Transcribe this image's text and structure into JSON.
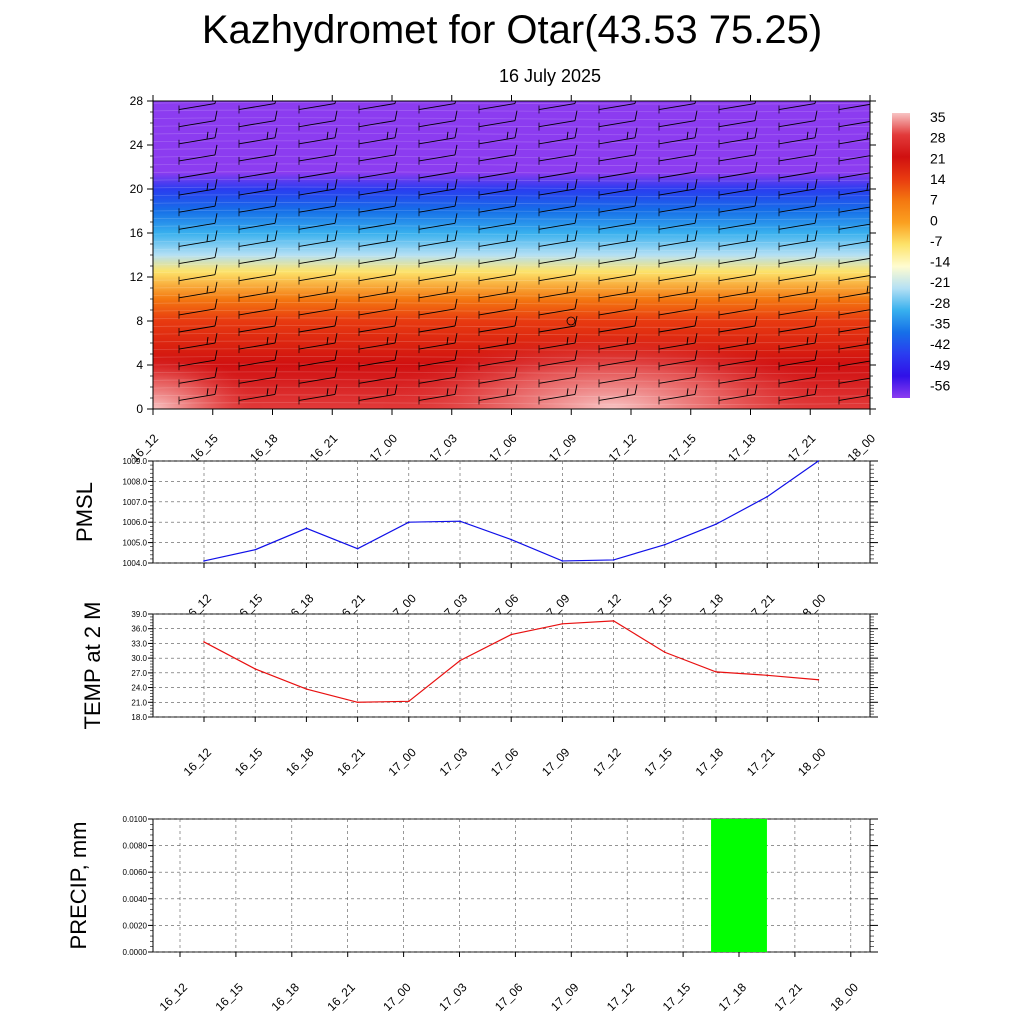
{
  "title": "Kazhydromet for Otar(43.53 75.25)",
  "subtitle": "16 July 2025",
  "time_labels": [
    "16_12",
    "16_15",
    "16_18",
    "16_21",
    "17_00",
    "17_03",
    "17_06",
    "17_09",
    "17_12",
    "17_15",
    "17_18",
    "17_21",
    "18_00"
  ],
  "colorbar": {
    "labels": [
      "35",
      "28",
      "21",
      "14",
      "7",
      "0",
      "-7",
      "-14",
      "-21",
      "-28",
      "-35",
      "-42",
      "-49",
      "-56"
    ],
    "colors": [
      "#f8c4c4",
      "#e23a3a",
      "#d01010",
      "#e83a10",
      "#f47810",
      "#fba020",
      "#fde36a",
      "#fffcd0",
      "#b4e0f4",
      "#38b0ee",
      "#1670e8",
      "#2a3cf0",
      "#3010e8",
      "#8c3cf0"
    ]
  },
  "chart_data": [
    {
      "type": "heatmap",
      "title": "",
      "xlabel": "",
      "ylabel": "",
      "x": [
        "16_12",
        "16_15",
        "16_18",
        "16_21",
        "17_00",
        "17_03",
        "17_06",
        "17_09",
        "17_12",
        "17_15",
        "17_18",
        "17_21",
        "18_00"
      ],
      "y_ticks": [
        0,
        4,
        8,
        12,
        16,
        20,
        24,
        28
      ],
      "ylim": [
        0,
        28
      ],
      "levels": [
        {
          "y": 0,
          "value": 28
        },
        {
          "y": 4,
          "value": 21
        },
        {
          "y": 8,
          "value": 14
        },
        {
          "y": 10,
          "value": 7
        },
        {
          "y": 12.5,
          "value": -7
        },
        {
          "y": 14,
          "value": -21
        },
        {
          "y": 16,
          "value": -28
        },
        {
          "y": 18,
          "value": -35
        },
        {
          "y": 20,
          "value": -42
        },
        {
          "y": 21.5,
          "value": -56
        },
        {
          "y": 24,
          "value": -56
        },
        {
          "y": 28,
          "value": -56
        }
      ],
      "surface_warm_peaks": [
        {
          "x": "16_12",
          "value": 35
        },
        {
          "x": "17_09",
          "value": 35
        }
      ],
      "wind_barbs": true,
      "grid": false
    },
    {
      "type": "line",
      "ylabel": "PMSL",
      "x": [
        "16_12",
        "16_15",
        "16_18",
        "16_21",
        "17_00",
        "17_03",
        "17_06",
        "17_09",
        "17_12",
        "17_15",
        "17_18",
        "17_21",
        "18_00"
      ],
      "series": [
        {
          "values": [
            1004.1,
            1004.65,
            1005.7,
            1004.7,
            1006.0,
            1006.05,
            1005.15,
            1004.1,
            1004.15,
            1004.9,
            1005.9,
            1007.25,
            1009.0
          ]
        }
      ],
      "y_ticks": [
        "1004.0",
        "1005.0",
        "1006.0",
        "1007.0",
        "1008.0",
        "1009.0"
      ],
      "ylim": [
        1004.0,
        1009.0
      ],
      "color": "#1010e8",
      "grid": true
    },
    {
      "type": "line",
      "ylabel": "TEMP at 2 M",
      "x": [
        "16_12",
        "16_15",
        "16_18",
        "16_21",
        "17_00",
        "17_03",
        "17_06",
        "17_09",
        "17_12",
        "17_15",
        "17_18",
        "17_21",
        "18_00"
      ],
      "series": [
        {
          "values": [
            33.3,
            27.8,
            23.7,
            21.0,
            21.2,
            29.5,
            34.8,
            37.0,
            37.6,
            31.2,
            27.2,
            26.5,
            25.6
          ]
        }
      ],
      "y_ticks": [
        "18.0",
        "21.0",
        "24.0",
        "27.0",
        "30.0",
        "33.0",
        "36.0",
        "39.0"
      ],
      "ylim": [
        18.0,
        39.0
      ],
      "color": "#e81010",
      "grid": true
    },
    {
      "type": "bar",
      "ylabel": "PRECIP, mm",
      "categories": [
        "16_12",
        "16_15",
        "16_18",
        "16_21",
        "17_00",
        "17_03",
        "17_06",
        "17_09",
        "17_12",
        "17_15",
        "17_18",
        "17_21",
        "18_00"
      ],
      "values": [
        0,
        0,
        0,
        0,
        0,
        0,
        0,
        0,
        0,
        0,
        0.01,
        0,
        0
      ],
      "y_ticks": [
        "0.0000",
        "0.0020",
        "0.0040",
        "0.0060",
        "0.0080",
        "0.0100"
      ],
      "ylim": [
        0,
        0.01
      ],
      "color": "#00ff00",
      "grid": true
    }
  ]
}
